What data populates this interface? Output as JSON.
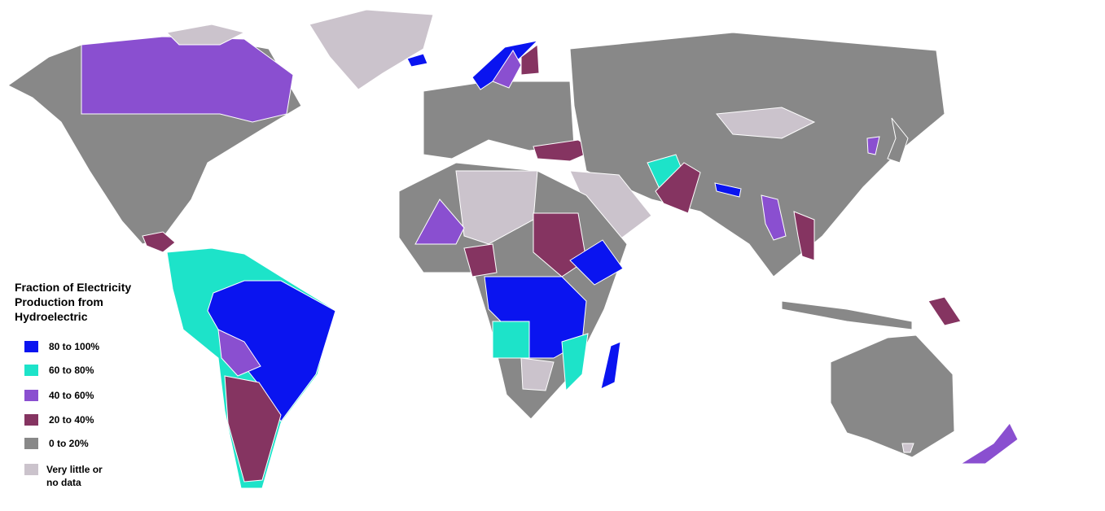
{
  "legend": {
    "title": [
      "Fraction of Electricity",
      "Production from",
      "Hydroelectric"
    ],
    "items": [
      {
        "label": "80 to 100%",
        "color": "#0a14f0"
      },
      {
        "label": "60 to 80%",
        "color": "#1de3c9"
      },
      {
        "label": "40 to 60%",
        "color": "#8a4fd0"
      },
      {
        "label": "20 to 40%",
        "color": "#853461"
      },
      {
        "label": "0 to 20%",
        "color": "#888888"
      },
      {
        "label": [
          "Very little or",
          "no data"
        ],
        "color": "#cbc3cc"
      }
    ]
  }
}
